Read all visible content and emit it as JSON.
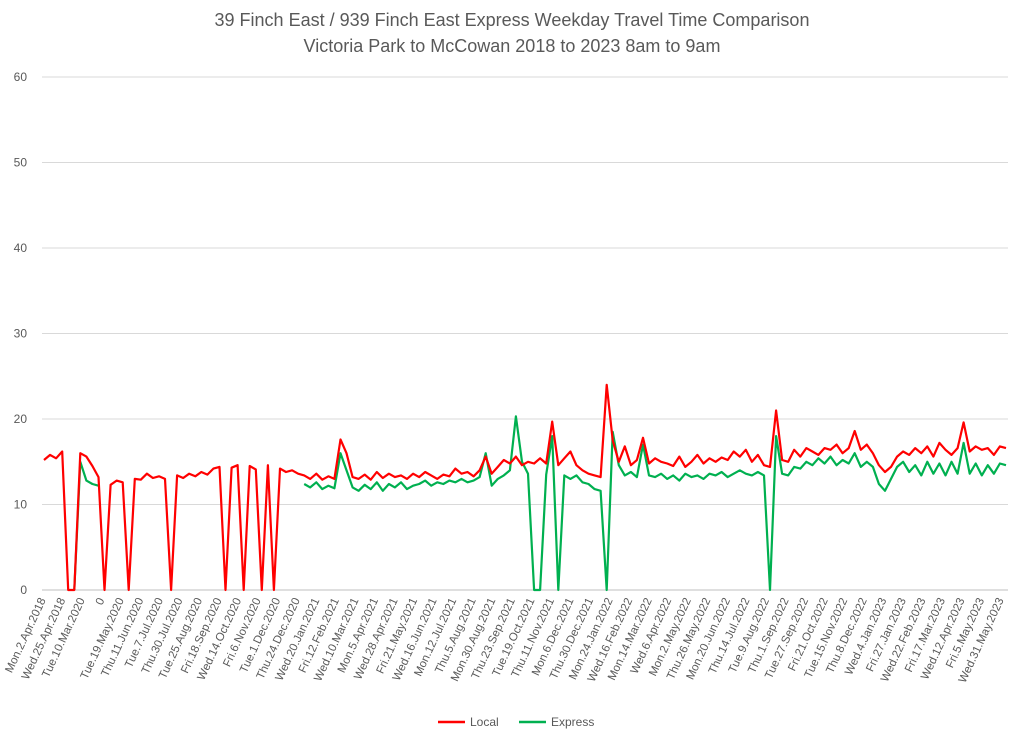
{
  "chart_data": {
    "type": "line",
    "title": [
      "39 Finch East / 939 Finch East Express Weekday Travel Time Comparison",
      "Victoria Park to McCowan 2018 to 2023 8am to 9am"
    ],
    "xlabel": "",
    "ylabel": "",
    "ylim": [
      0,
      60
    ],
    "yticks": [
      0,
      10,
      20,
      30,
      40,
      50,
      60
    ],
    "grid": true,
    "legend_position": "bottom",
    "x_tick_labels": [
      "Mon.2.Apr.2018",
      "Wed.25.Apr.2018",
      "Tue.10.Mar.2020",
      "0",
      "Tue.19.May.2020",
      "Thu.11.Jun.2020",
      "Tue.7.Jul.2020",
      "Thu.30.Jul.2020",
      "Tue.25.Aug.2020",
      "Fri.18.Sep.2020",
      "Wed.14.Oct.2020",
      "Fri.6.Nov.2020",
      "Tue.1.Dec.2020",
      "Thu.24.Dec.2020",
      "Wed.20.Jan.2021",
      "Fri.12.Feb.2021",
      "Wed.10.Mar.2021",
      "Mon.5.Apr.2021",
      "Wed.28.Apr.2021",
      "Fri.21.May.2021",
      "Wed.16.Jun.2021",
      "Mon.12.Jul.2021",
      "Thu.5.Aug.2021",
      "Mon.30.Aug.2021",
      "Thu.23.Sep.2021",
      "Tue.19.Oct.2021",
      "Thu.11.Nov.2021",
      "Mon.6.Dec.2021",
      "Thu.30.Dec.2021",
      "Mon.24.Jan.2022",
      "Wed.16.Feb.2022",
      "Mon.14.Mar.2022",
      "Wed.6.Apr.2022",
      "Mon.2.May.2022",
      "Thu.26.May.2022",
      "Mon.20.Jun.2022",
      "Thu.14.Jul.2022",
      "Tue.9.Aug.2022",
      "Thu.1.Sep.2022",
      "Tue.27.Sep.2022",
      "Fri.21.Oct.2022",
      "Tue.15.Nov.2022",
      "Thu.8.Dec.2022",
      "Wed.4.Jan.2023",
      "Fri.27.Jan.2023",
      "Wed.22.Feb.2023",
      "Fri.17.Mar.2023",
      "Wed.12.Apr.2023",
      "Fri.5.May.2023",
      "Wed.31.May.2023"
    ],
    "series": [
      {
        "name": "Local",
        "color": "#ff0000",
        "values": [
          15.2,
          15.8,
          15.4,
          16.2,
          0,
          0,
          16.0,
          15.6,
          14.5,
          13.2,
          0,
          12.3,
          12.8,
          12.6,
          0,
          13.0,
          12.9,
          13.6,
          13.1,
          13.3,
          13.0,
          0,
          13.4,
          13.1,
          13.6,
          13.3,
          13.8,
          13.5,
          14.2,
          14.4,
          0,
          14.3,
          14.6,
          0,
          14.5,
          14.1,
          0,
          14.6,
          0,
          14.2,
          13.8,
          14.0,
          13.6,
          13.4,
          13.0,
          13.6,
          12.9,
          13.3,
          13.0,
          17.6,
          16.0,
          13.2,
          13.0,
          13.5,
          12.9,
          13.8,
          13.1,
          13.6,
          13.2,
          13.4,
          13.0,
          13.6,
          13.2,
          13.8,
          13.4,
          13.0,
          13.5,
          13.3,
          14.2,
          13.6,
          13.8,
          13.3,
          14.0,
          15.6,
          13.6,
          14.4,
          15.2,
          14.8,
          15.6,
          14.6,
          15.0,
          14.8,
          15.4,
          14.8,
          19.7,
          14.6,
          15.4,
          16.2,
          14.6,
          14.0,
          13.6,
          13.4,
          13.2,
          24.0,
          17.5,
          15.0,
          16.8,
          14.6,
          15.2,
          17.8,
          14.8,
          15.4,
          15.0,
          14.8,
          14.5,
          15.6,
          14.4,
          15.0,
          15.8,
          14.8,
          15.4,
          15.0,
          15.5,
          15.2,
          16.2,
          15.6,
          16.4,
          15.0,
          15.8,
          14.6,
          14.4,
          21.0,
          15.2,
          15.0,
          16.4,
          15.6,
          16.6,
          16.2,
          15.8,
          16.6,
          16.4,
          17.0,
          16.0,
          16.6,
          18.6,
          16.4,
          17.0,
          16.0,
          14.6,
          13.8,
          14.4,
          15.6,
          16.2,
          15.8,
          16.6,
          16.0,
          16.8,
          15.6,
          17.2,
          16.4,
          15.8,
          16.6,
          19.6,
          16.2,
          16.8,
          16.4,
          16.6,
          15.8,
          16.8,
          16.6
        ]
      },
      {
        "name": "Express",
        "color": "#00b050",
        "values": [
          null,
          null,
          null,
          null,
          null,
          0,
          15.0,
          12.8,
          12.4,
          12.2,
          null,
          null,
          null,
          null,
          null,
          null,
          null,
          null,
          null,
          null,
          null,
          null,
          null,
          null,
          null,
          null,
          null,
          null,
          null,
          null,
          null,
          null,
          null,
          null,
          null,
          null,
          null,
          null,
          null,
          null,
          null,
          null,
          null,
          12.4,
          12.0,
          12.6,
          11.8,
          12.2,
          11.9,
          16.0,
          14.0,
          12.0,
          11.6,
          12.3,
          11.8,
          12.6,
          11.6,
          12.4,
          12.0,
          12.6,
          11.8,
          12.2,
          12.4,
          12.8,
          12.2,
          12.6,
          12.4,
          12.8,
          12.6,
          13.0,
          12.6,
          12.8,
          13.2,
          16.0,
          12.2,
          13.0,
          13.4,
          14.0,
          20.3,
          15.0,
          13.6,
          0,
          0,
          13.5,
          18.0,
          0,
          13.4,
          13.0,
          13.4,
          12.6,
          12.4,
          11.8,
          11.6,
          0,
          18.5,
          14.6,
          13.4,
          13.8,
          13.2,
          17.0,
          13.4,
          13.2,
          13.6,
          13.0,
          13.4,
          12.8,
          13.6,
          13.2,
          13.4,
          13.0,
          13.6,
          13.4,
          13.8,
          13.2,
          13.6,
          14.0,
          13.6,
          13.4,
          13.8,
          13.4,
          0,
          18.0,
          13.6,
          13.4,
          14.4,
          14.2,
          15.0,
          14.6,
          15.4,
          14.8,
          15.6,
          14.6,
          15.2,
          14.8,
          16.0,
          14.4,
          15.0,
          14.4,
          12.4,
          11.6,
          13.0,
          14.4,
          15.0,
          13.8,
          14.6,
          13.4,
          15.0,
          13.6,
          14.8,
          13.4,
          15.0,
          13.6,
          17.2,
          13.6,
          14.8,
          13.4,
          14.6,
          13.6,
          14.8,
          14.6
        ]
      }
    ]
  }
}
